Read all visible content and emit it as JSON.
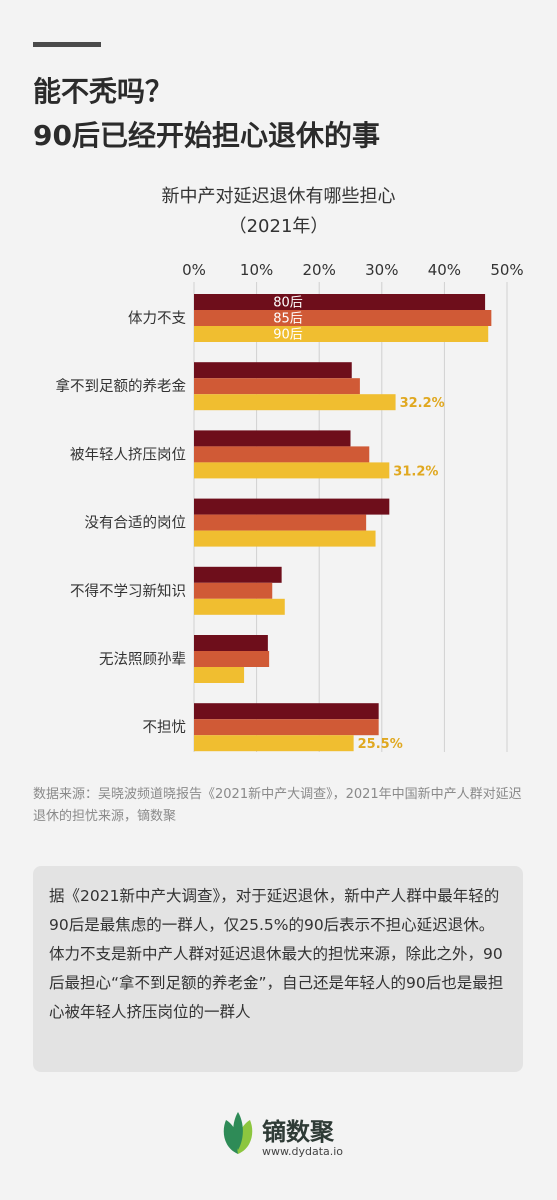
{
  "header": {
    "title_line1": "能不秃吗？",
    "title_line2": "90后已经开始担心退休的事"
  },
  "chart_data": {
    "type": "bar",
    "orientation": "horizontal",
    "title": "新中产对延迟退休有哪些担心",
    "subtitle": "（2021年）",
    "x_ticks": [
      "0%",
      "10%",
      "20%",
      "30%",
      "40%",
      "50%"
    ],
    "xlim": [
      0,
      50
    ],
    "grid": true,
    "categories": [
      "体力不支",
      "拿不到足额的养老金",
      "被年轻人挤压岗位",
      "没有合适的岗位",
      "不得不学习新知识",
      "无法照顾孙辈",
      "不担忧"
    ],
    "series": [
      {
        "name": "80后",
        "color": "#6e0e1b",
        "values": [
          46.5,
          25.2,
          25.0,
          31.2,
          14.0,
          11.8,
          29.5
        ]
      },
      {
        "name": "85后",
        "color": "#d05a36",
        "values": [
          47.5,
          26.5,
          28.0,
          27.5,
          12.5,
          12.0,
          29.5
        ]
      },
      {
        "name": "90后",
        "color": "#f0be30",
        "values": [
          47.0,
          32.2,
          31.2,
          29.0,
          14.5,
          8.0,
          25.5
        ]
      }
    ],
    "value_labels": [
      {
        "category": "拿不到足额的养老金",
        "series": "90后",
        "text": "32.2%"
      },
      {
        "category": "被年轻人挤压岗位",
        "series": "90后",
        "text": "31.2%"
      },
      {
        "category": "不担忧",
        "series": "90后",
        "text": "25.5%"
      }
    ],
    "legend_placement": "inside-first-group"
  },
  "source": {
    "text": "数据来源：吴晓波频道晓报告《2021新中产大调查》，2021年中国新中产人群对延迟退休的担忧来源，镝数聚"
  },
  "summary": {
    "text": "据《2021新中产大调查》，对于延迟退休，新中产人群中最年轻的90后是最焦虑的一群人，仅25.5%的90后表示不担心延迟退休。体力不支是新中产人群对延迟退休最大的担忧来源，除此之外，90后最担心“拿不到足额的养老金”，自己还是年轻人的90后也是最担心被年轻人挤压岗位的一群人"
  },
  "brand": {
    "name": "镝数聚",
    "url": "www.dydata.io",
    "logo_icon": "leaf-logo-icon",
    "logo_colors": [
      "#2e8b57",
      "#8cc63f"
    ]
  },
  "colors": {
    "background": "#f3f3f3",
    "grid": "#d0d0d0",
    "value_label": "#e0a820"
  }
}
